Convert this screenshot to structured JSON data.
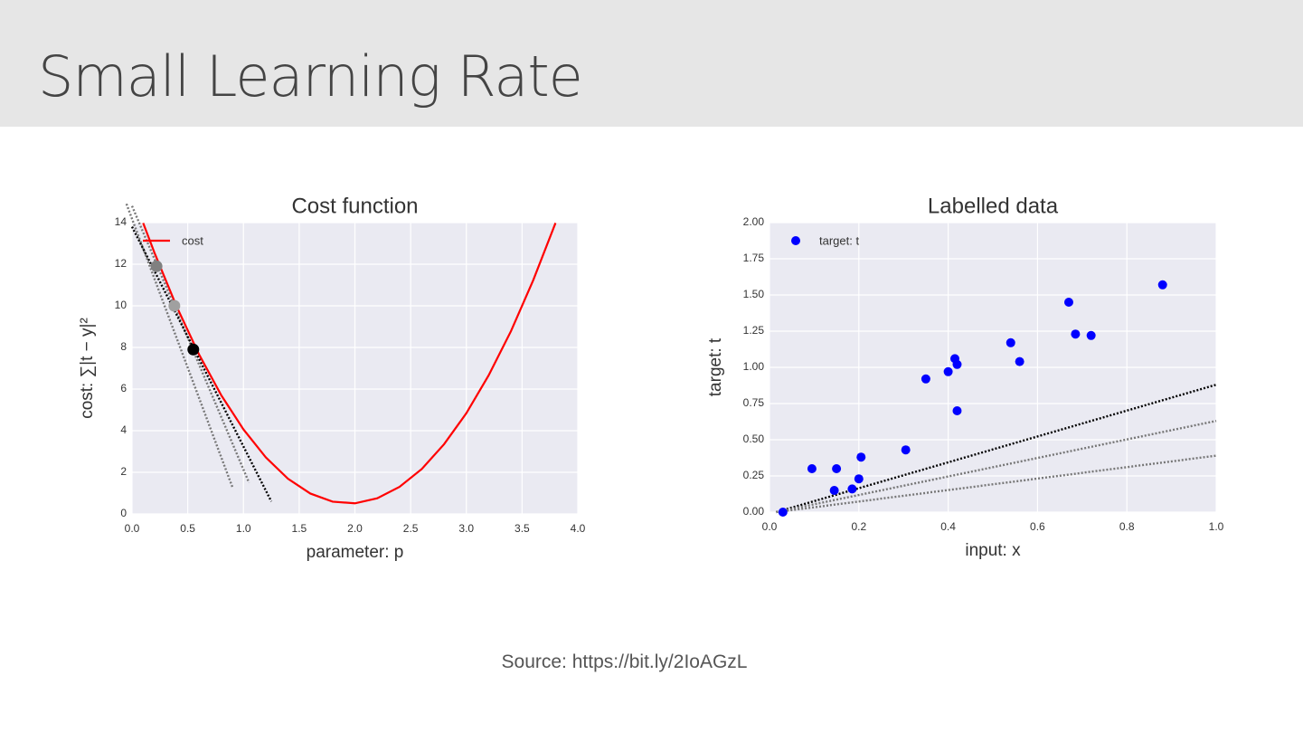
{
  "slide_title": "Small Learning Rate",
  "source": "Source: https://bit.ly/2IoAGzL",
  "chart_data": [
    {
      "type": "line",
      "title": "Cost function",
      "x_label": "parameter: p",
      "y_label": "cost: ∑|t − y|²",
      "xlim": [
        0,
        4
      ],
      "ylim": [
        0,
        14
      ],
      "xticks": [
        {
          "value": 0,
          "label": "0.0"
        },
        0.5,
        {
          "value": 1,
          "label": "1.0"
        },
        1.5,
        {
          "value": 2,
          "label": "2.0"
        },
        2.5,
        {
          "value": 3,
          "label": "3.0"
        },
        3.5,
        {
          "value": 4,
          "label": "4.0"
        }
      ],
      "yticks": [
        0,
        2,
        4,
        6,
        8,
        10,
        12,
        14
      ],
      "grid": true,
      "legend": "upper left",
      "series": [
        {
          "name": "cost",
          "color": "#ff0000",
          "x": [
            0.1,
            0.2,
            0.4,
            0.6,
            0.8,
            1.0,
            1.2,
            1.4,
            1.6,
            1.8,
            2.0,
            2.2,
            2.4,
            2.6,
            2.8,
            3.0,
            3.2,
            3.4,
            3.6,
            3.8
          ],
          "values": [
            13.98,
            12.57,
            9.97,
            7.68,
            5.71,
            4.06,
            2.72,
            1.69,
            0.98,
            0.59,
            0.51,
            0.75,
            1.3,
            2.16,
            3.35,
            4.84,
            6.66,
            8.78,
            11.23,
            13.98
          ]
        }
      ],
      "tangent_lines": [
        {
          "color": "#777777",
          "x": [
            -0.05,
            0.9
          ],
          "values": [
            14.9,
            1.3
          ]
        },
        {
          "color": "#777777",
          "x": [
            0.0,
            1.05
          ],
          "values": [
            14.8,
            1.5
          ]
        },
        {
          "color": "#000000",
          "x": [
            0.0,
            1.25
          ],
          "values": [
            13.8,
            0.6
          ]
        }
      ],
      "points": {
        "x": [
          0.22,
          0.38,
          0.55
        ],
        "values": [
          11.9,
          10.0,
          7.9
        ],
        "colors": [
          "#808080",
          "#a0a0a0",
          "#000000"
        ]
      }
    },
    {
      "type": "scatter",
      "title": "Labelled data",
      "x_label": "input: x",
      "y_label": "target: t",
      "xlim": [
        0,
        1
      ],
      "ylim": [
        0,
        2
      ],
      "xticks": [
        {
          "value": 0,
          "label": "0.0"
        },
        0.2,
        0.4,
        0.6,
        0.8,
        {
          "value": 1,
          "label": "1.0"
        }
      ],
      "yticks": [
        {
          "value": 0,
          "label": "0.00"
        },
        0.25,
        {
          "value": 0.5,
          "label": "0.50"
        },
        0.75,
        {
          "value": 1,
          "label": "1.00"
        },
        1.25,
        {
          "value": 1.5,
          "label": "1.50"
        },
        1.75,
        {
          "value": 2,
          "label": "2.00"
        }
      ],
      "grid": true,
      "legend": "upper left",
      "series": [
        {
          "name": "target: t",
          "color": "#0000ff",
          "x": [
            0.03,
            0.095,
            0.145,
            0.15,
            0.185,
            0.2,
            0.205,
            0.305,
            0.35,
            0.4,
            0.415,
            0.42,
            0.42,
            0.54,
            0.56,
            0.67,
            0.685,
            0.72,
            0.88
          ],
          "values": [
            0.0,
            0.3,
            0.15,
            0.3,
            0.16,
            0.23,
            0.38,
            0.43,
            0.92,
            0.97,
            1.06,
            1.02,
            0.7,
            1.17,
            1.04,
            1.45,
            1.23,
            1.22,
            1.57
          ]
        }
      ],
      "fit_lines": [
        {
          "color": "#000000",
          "x": [
            0.015,
            1
          ],
          "values": [
            0,
            0.88
          ]
        },
        {
          "color": "#777777",
          "x": [
            0.015,
            1
          ],
          "values": [
            0,
            0.63
          ]
        },
        {
          "color": "#777777",
          "x": [
            0.015,
            1
          ],
          "values": [
            0,
            0.39
          ]
        }
      ]
    }
  ]
}
